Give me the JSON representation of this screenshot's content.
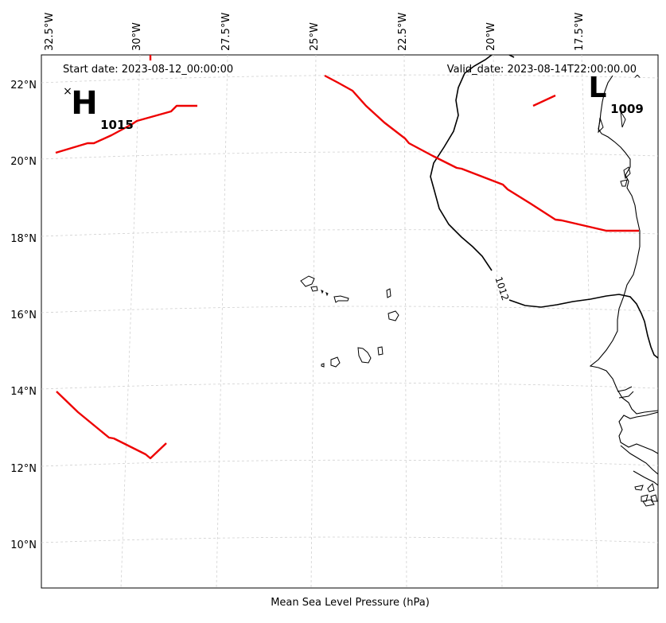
{
  "map": {
    "start_date": "Start date: 2023-08-12_00:00:00",
    "valid_date": "Valid_date: 2023-08-14T22:00:00.00",
    "xlabel": "Mean Sea Level Pressure (hPa)",
    "lon_ticks": [
      "32.5°W",
      "30°W",
      "27.5°W",
      "25°W",
      "22.5°W",
      "20°W",
      "17.5°W"
    ],
    "lat_ticks": [
      "22°N",
      "20°N",
      "18°N",
      "16°N",
      "14°N",
      "12°N",
      "10°N"
    ],
    "pressure_centers": [
      {
        "type": "H",
        "value": "1015"
      },
      {
        "type": "L",
        "value": "1009"
      }
    ],
    "contour_label": "1012",
    "colors": {
      "front": "#ee0000",
      "isobar": "#000000",
      "grid": "#cccccc",
      "coast": "#000000"
    }
  }
}
